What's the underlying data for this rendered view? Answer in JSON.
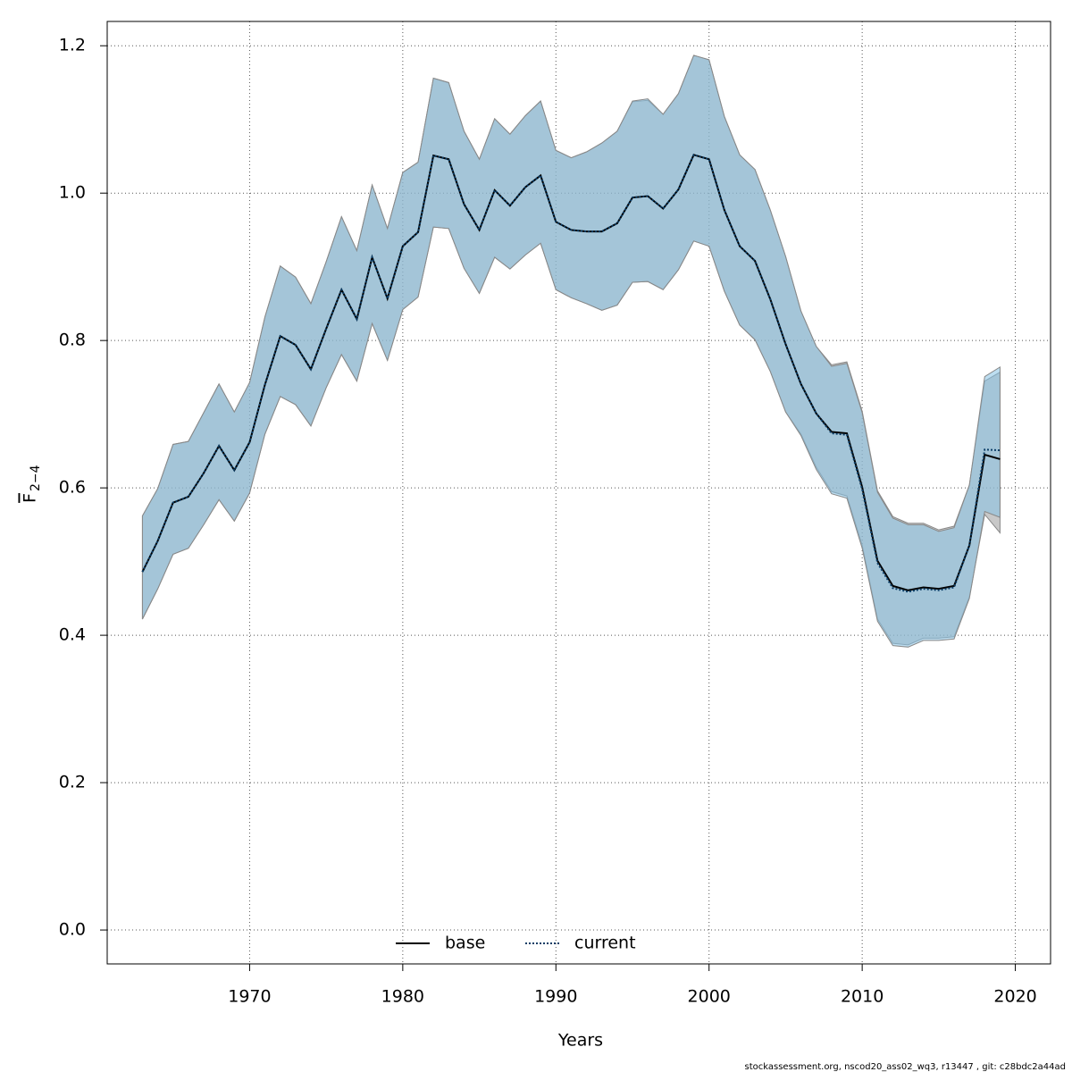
{
  "chart_data": {
    "type": "line-band",
    "xlabel": "Years",
    "ylabel": "F",
    "ylabel_sub": "2−4",
    "footer": "stockassessment.org, nscod20_ass02_wq3, r13447 , git: c28bdc2a44ad",
    "x": [
      1963,
      1964,
      1965,
      1966,
      1967,
      1968,
      1969,
      1970,
      1971,
      1972,
      1973,
      1974,
      1975,
      1976,
      1977,
      1978,
      1979,
      1980,
      1981,
      1982,
      1983,
      1984,
      1985,
      1986,
      1987,
      1988,
      1989,
      1990,
      1991,
      1992,
      1993,
      1994,
      1995,
      1996,
      1997,
      1998,
      1999,
      2000,
      2001,
      2002,
      2003,
      2004,
      2005,
      2006,
      2007,
      2008,
      2009,
      2010,
      2011,
      2012,
      2013,
      2014,
      2015,
      2016,
      2017,
      2018,
      2019
    ],
    "series": [
      {
        "name": "base",
        "color": "#000000",
        "dash": "none",
        "band_color": "#9a9a9a",
        "values": [
          0.486,
          0.528,
          0.58,
          0.588,
          0.62,
          0.657,
          0.624,
          0.662,
          0.74,
          0.806,
          0.794,
          0.761,
          0.816,
          0.869,
          0.829,
          0.913,
          0.857,
          0.928,
          0.947,
          1.051,
          1.046,
          0.985,
          0.95,
          1.004,
          0.983,
          1.008,
          1.024,
          0.961,
          0.95,
          0.948,
          0.948,
          0.959,
          0.994,
          0.996,
          0.979,
          1.005,
          1.052,
          1.046,
          0.977,
          0.928,
          0.908,
          0.856,
          0.795,
          0.741,
          0.701,
          0.676,
          0.674,
          0.601,
          0.501,
          0.467,
          0.461,
          0.465,
          0.463,
          0.467,
          0.522,
          0.645,
          0.639
        ],
        "low": [
          0.422,
          0.463,
          0.51,
          0.518,
          0.55,
          0.584,
          0.555,
          0.593,
          0.673,
          0.724,
          0.713,
          0.684,
          0.736,
          0.781,
          0.745,
          0.823,
          0.773,
          0.842,
          0.859,
          0.954,
          0.952,
          0.898,
          0.864,
          0.913,
          0.897,
          0.916,
          0.932,
          0.869,
          0.858,
          0.85,
          0.841,
          0.848,
          0.879,
          0.88,
          0.869,
          0.896,
          0.935,
          0.928,
          0.867,
          0.821,
          0.801,
          0.758,
          0.703,
          0.673,
          0.628,
          0.595,
          0.589,
          0.522,
          0.422,
          0.389,
          0.387,
          0.396,
          0.396,
          0.398,
          0.452,
          0.564,
          0.539
        ],
        "high": [
          0.562,
          0.599,
          0.659,
          0.663,
          0.702,
          0.741,
          0.703,
          0.743,
          0.832,
          0.901,
          0.886,
          0.85,
          0.907,
          0.968,
          0.922,
          1.011,
          0.952,
          1.028,
          1.042,
          1.156,
          1.15,
          1.084,
          1.046,
          1.101,
          1.08,
          1.105,
          1.125,
          1.058,
          1.048,
          1.056,
          1.068,
          1.084,
          1.124,
          1.126,
          1.107,
          1.135,
          1.187,
          1.181,
          1.104,
          1.052,
          1.032,
          0.977,
          0.914,
          0.84,
          0.792,
          0.767,
          0.771,
          0.704,
          0.596,
          0.561,
          0.552,
          0.552,
          0.543,
          0.548,
          0.604,
          0.745,
          0.757
        ]
      },
      {
        "name": "current",
        "color": "#0b3d66",
        "dash": "2,2",
        "band_color": "#87c3e6",
        "values": [
          0.486,
          0.528,
          0.58,
          0.588,
          0.62,
          0.657,
          0.624,
          0.662,
          0.74,
          0.806,
          0.794,
          0.761,
          0.816,
          0.869,
          0.829,
          0.913,
          0.857,
          0.928,
          0.947,
          1.051,
          1.046,
          0.985,
          0.95,
          1.004,
          0.983,
          1.008,
          1.024,
          0.961,
          0.95,
          0.948,
          0.948,
          0.959,
          0.994,
          0.996,
          0.979,
          1.005,
          1.052,
          1.046,
          0.977,
          0.928,
          0.908,
          0.856,
          0.795,
          0.741,
          0.701,
          0.674,
          0.672,
          0.598,
          0.498,
          0.464,
          0.459,
          0.463,
          0.461,
          0.465,
          0.522,
          0.652,
          0.651
        ],
        "low": [
          0.422,
          0.463,
          0.51,
          0.518,
          0.55,
          0.584,
          0.555,
          0.593,
          0.673,
          0.724,
          0.713,
          0.684,
          0.736,
          0.781,
          0.745,
          0.823,
          0.773,
          0.842,
          0.859,
          0.954,
          0.952,
          0.898,
          0.864,
          0.913,
          0.897,
          0.916,
          0.932,
          0.869,
          0.858,
          0.85,
          0.841,
          0.848,
          0.879,
          0.88,
          0.869,
          0.896,
          0.935,
          0.928,
          0.867,
          0.821,
          0.801,
          0.758,
          0.703,
          0.671,
          0.625,
          0.592,
          0.586,
          0.518,
          0.419,
          0.386,
          0.384,
          0.393,
          0.393,
          0.395,
          0.45,
          0.568,
          0.56
        ],
        "high": [
          0.562,
          0.599,
          0.659,
          0.663,
          0.702,
          0.741,
          0.703,
          0.743,
          0.832,
          0.901,
          0.886,
          0.85,
          0.907,
          0.968,
          0.922,
          1.011,
          0.952,
          1.028,
          1.042,
          1.156,
          1.15,
          1.084,
          1.046,
          1.101,
          1.08,
          1.105,
          1.125,
          1.058,
          1.048,
          1.056,
          1.068,
          1.084,
          1.125,
          1.128,
          1.107,
          1.135,
          1.187,
          1.181,
          1.104,
          1.052,
          1.032,
          0.977,
          0.914,
          0.84,
          0.792,
          0.765,
          0.769,
          0.702,
          0.594,
          0.559,
          0.55,
          0.55,
          0.541,
          0.546,
          0.604,
          0.751,
          0.764
        ]
      }
    ],
    "xlim": [
      1960.7,
      2022.3
    ],
    "ylim": [
      -0.046,
      1.233
    ],
    "xticks": [
      1970,
      1980,
      1990,
      2000,
      2010,
      2020
    ],
    "yticks": [
      {
        "value": 0,
        "label": "0.0"
      },
      0.2,
      0.4,
      0.6,
      0.8,
      {
        "value": 1,
        "label": "1.0"
      },
      1.2
    ],
    "grid": true,
    "legend": "bottom"
  }
}
